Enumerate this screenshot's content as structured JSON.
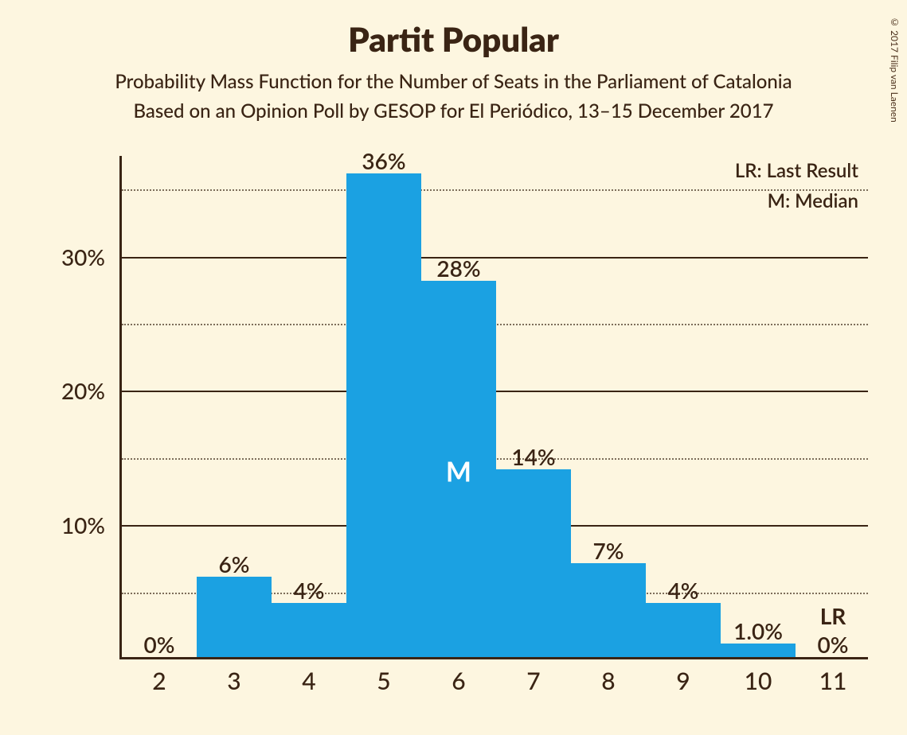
{
  "title": "Partit Popular",
  "subtitle_line1": "Probability Mass Function for the Number of Seats in the Parliament of Catalonia",
  "subtitle_line2": "Based on an Opinion Poll by GESOP for El Periódico, 13–15 December 2017",
  "copyright": "© 2017 Filip van Laenen",
  "legend_lr": "LR: Last Result",
  "legend_m": "M: Median",
  "chart": {
    "type": "bar",
    "bar_color": "#1ba1e2",
    "background_color": "#fdf6e0",
    "axis_color": "#3a2414",
    "grid_major_color": "#3a2414",
    "grid_minor_color": "#3a2414",
    "ylim_max": 37.5,
    "y_major_ticks": [
      10,
      20,
      30
    ],
    "y_minor_ticks": [
      5,
      15,
      25,
      35
    ],
    "y_tick_labels": [
      "10%",
      "20%",
      "30%"
    ],
    "bar_width_ratio": 0.99,
    "categories": [
      2,
      3,
      4,
      5,
      6,
      7,
      8,
      9,
      10,
      11
    ],
    "values": [
      0,
      6,
      4,
      36,
      28,
      14,
      7,
      4,
      1.0,
      0
    ],
    "value_labels": [
      "0%",
      "6%",
      "4%",
      "36%",
      "28%",
      "14%",
      "7%",
      "4%",
      "1.0%",
      "0%"
    ],
    "median_index": 4,
    "median_marker": "M",
    "last_result_index": 9,
    "last_result_marker": "LR",
    "title_fontsize": 42,
    "subtitle_fontsize": 24,
    "tick_fontsize": 28,
    "xtick_fontsize": 30,
    "value_label_fontsize": 28
  }
}
